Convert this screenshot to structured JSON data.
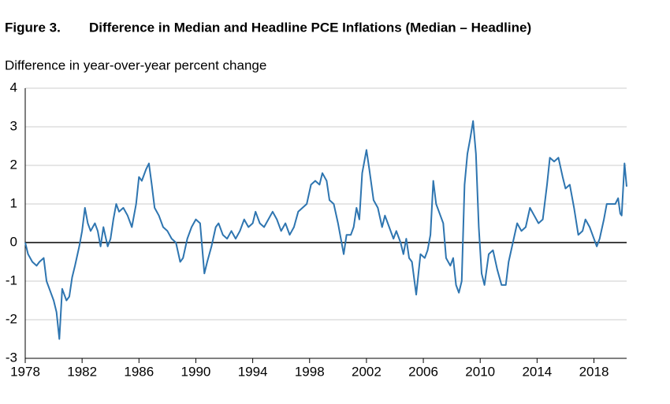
{
  "chart_data": {
    "type": "line",
    "figure_label": "Figure 3.",
    "title": "Difference in Median and Headline PCE Inflations (Median – Headline)",
    "y_label": "Difference in year-over-year percent change",
    "xlim": [
      1978,
      2020.3
    ],
    "ylim": [
      -3,
      4
    ],
    "xticks": [
      1978,
      1982,
      1986,
      1990,
      1994,
      1998,
      2002,
      2006,
      2010,
      2014,
      2018
    ],
    "yticks": [
      -3,
      -2,
      -1,
      0,
      1,
      2,
      3,
      4
    ],
    "grid": true,
    "x": [
      1978.0,
      1978.2,
      1978.5,
      1978.8,
      1979.0,
      1979.3,
      1979.5,
      1979.8,
      1980.0,
      1980.2,
      1980.4,
      1980.6,
      1980.9,
      1981.1,
      1981.3,
      1981.5,
      1981.8,
      1982.0,
      1982.2,
      1982.4,
      1982.6,
      1982.9,
      1983.1,
      1983.3,
      1983.5,
      1983.8,
      1984.0,
      1984.2,
      1984.4,
      1984.6,
      1984.9,
      1985.2,
      1985.5,
      1985.8,
      1986.0,
      1986.2,
      1986.5,
      1986.7,
      1986.9,
      1987.1,
      1987.4,
      1987.7,
      1988.0,
      1988.3,
      1988.6,
      1988.9,
      1989.1,
      1989.4,
      1989.7,
      1990.0,
      1990.3,
      1990.6,
      1990.8,
      1991.1,
      1991.4,
      1991.6,
      1991.9,
      1992.2,
      1992.5,
      1992.8,
      1993.1,
      1993.4,
      1993.7,
      1994.0,
      1994.2,
      1994.5,
      1994.8,
      1995.1,
      1995.4,
      1995.7,
      1996.0,
      1996.3,
      1996.6,
      1996.9,
      1997.2,
      1997.5,
      1997.8,
      1998.1,
      1998.4,
      1998.7,
      1998.9,
      1999.2,
      1999.4,
      1999.7,
      2000.0,
      2000.2,
      2000.4,
      2000.6,
      2000.9,
      2001.1,
      2001.3,
      2001.5,
      2001.7,
      2002.0,
      2002.2,
      2002.5,
      2002.8,
      2003.1,
      2003.3,
      2003.6,
      2003.9,
      2004.1,
      2004.4,
      2004.6,
      2004.8,
      2005.0,
      2005.2,
      2005.5,
      2005.8,
      2006.1,
      2006.3,
      2006.5,
      2006.7,
      2006.9,
      2007.2,
      2007.4,
      2007.6,
      2007.9,
      2008.1,
      2008.3,
      2008.5,
      2008.7,
      2008.9,
      2009.1,
      2009.3,
      2009.5,
      2009.7,
      2009.9,
      2010.1,
      2010.3,
      2010.6,
      2010.9,
      2011.2,
      2011.5,
      2011.8,
      2012.0,
      2012.3,
      2012.6,
      2012.9,
      2013.2,
      2013.5,
      2013.8,
      2014.1,
      2014.4,
      2014.7,
      2014.9,
      2015.2,
      2015.5,
      2015.8,
      2016.0,
      2016.3,
      2016.6,
      2016.9,
      2017.2,
      2017.4,
      2017.7,
      2017.9,
      2018.2,
      2018.4,
      2018.7,
      2018.9,
      2019.2,
      2019.5,
      2019.7,
      2019.85,
      2019.95,
      2020.15,
      2020.3
    ],
    "series": [
      {
        "color": "#2e75b0",
        "values": [
          0,
          -0.3,
          -0.5,
          -0.6,
          -0.5,
          -0.4,
          -1.0,
          -1.3,
          -1.5,
          -1.8,
          -2.5,
          -1.2,
          -1.5,
          -1.4,
          -0.9,
          -0.6,
          -0.1,
          0.3,
          0.9,
          0.5,
          0.3,
          0.5,
          0.3,
          -0.1,
          0.4,
          -0.1,
          0.1,
          0.6,
          1.0,
          0.8,
          0.9,
          0.7,
          0.4,
          1.0,
          1.7,
          1.6,
          1.9,
          2.05,
          1.5,
          0.9,
          0.7,
          0.4,
          0.3,
          0.1,
          0.0,
          -0.5,
          -0.4,
          0.1,
          0.4,
          0.6,
          0.5,
          -0.8,
          -0.5,
          -0.1,
          0.4,
          0.5,
          0.2,
          0.1,
          0.3,
          0.1,
          0.3,
          0.6,
          0.4,
          0.5,
          0.8,
          0.5,
          0.4,
          0.6,
          0.8,
          0.6,
          0.3,
          0.5,
          0.2,
          0.4,
          0.8,
          0.9,
          1.0,
          1.5,
          1.6,
          1.5,
          1.8,
          1.6,
          1.1,
          1.0,
          0.5,
          0.1,
          -0.3,
          0.2,
          0.2,
          0.4,
          0.9,
          0.6,
          1.8,
          2.4,
          1.9,
          1.1,
          0.9,
          0.4,
          0.7,
          0.4,
          0.1,
          0.3,
          0.0,
          -0.3,
          0.1,
          -0.4,
          -0.5,
          -1.35,
          -0.3,
          -0.4,
          -0.2,
          0.2,
          1.6,
          1.0,
          0.7,
          0.5,
          -0.4,
          -0.6,
          -0.4,
          -1.1,
          -1.3,
          -1.0,
          1.5,
          2.3,
          2.7,
          3.15,
          2.3,
          0.4,
          -0.8,
          -1.1,
          -0.3,
          -0.2,
          -0.7,
          -1.1,
          -1.1,
          -0.5,
          0.0,
          0.5,
          0.3,
          0.4,
          0.9,
          0.7,
          0.5,
          0.6,
          1.5,
          2.2,
          2.1,
          2.2,
          1.7,
          1.4,
          1.5,
          0.9,
          0.2,
          0.3,
          0.6,
          0.4,
          0.2,
          -0.1,
          0.1,
          0.6,
          1.0,
          1.0,
          1.0,
          1.15,
          0.75,
          0.7,
          2.05,
          1.45
        ]
      }
    ]
  }
}
